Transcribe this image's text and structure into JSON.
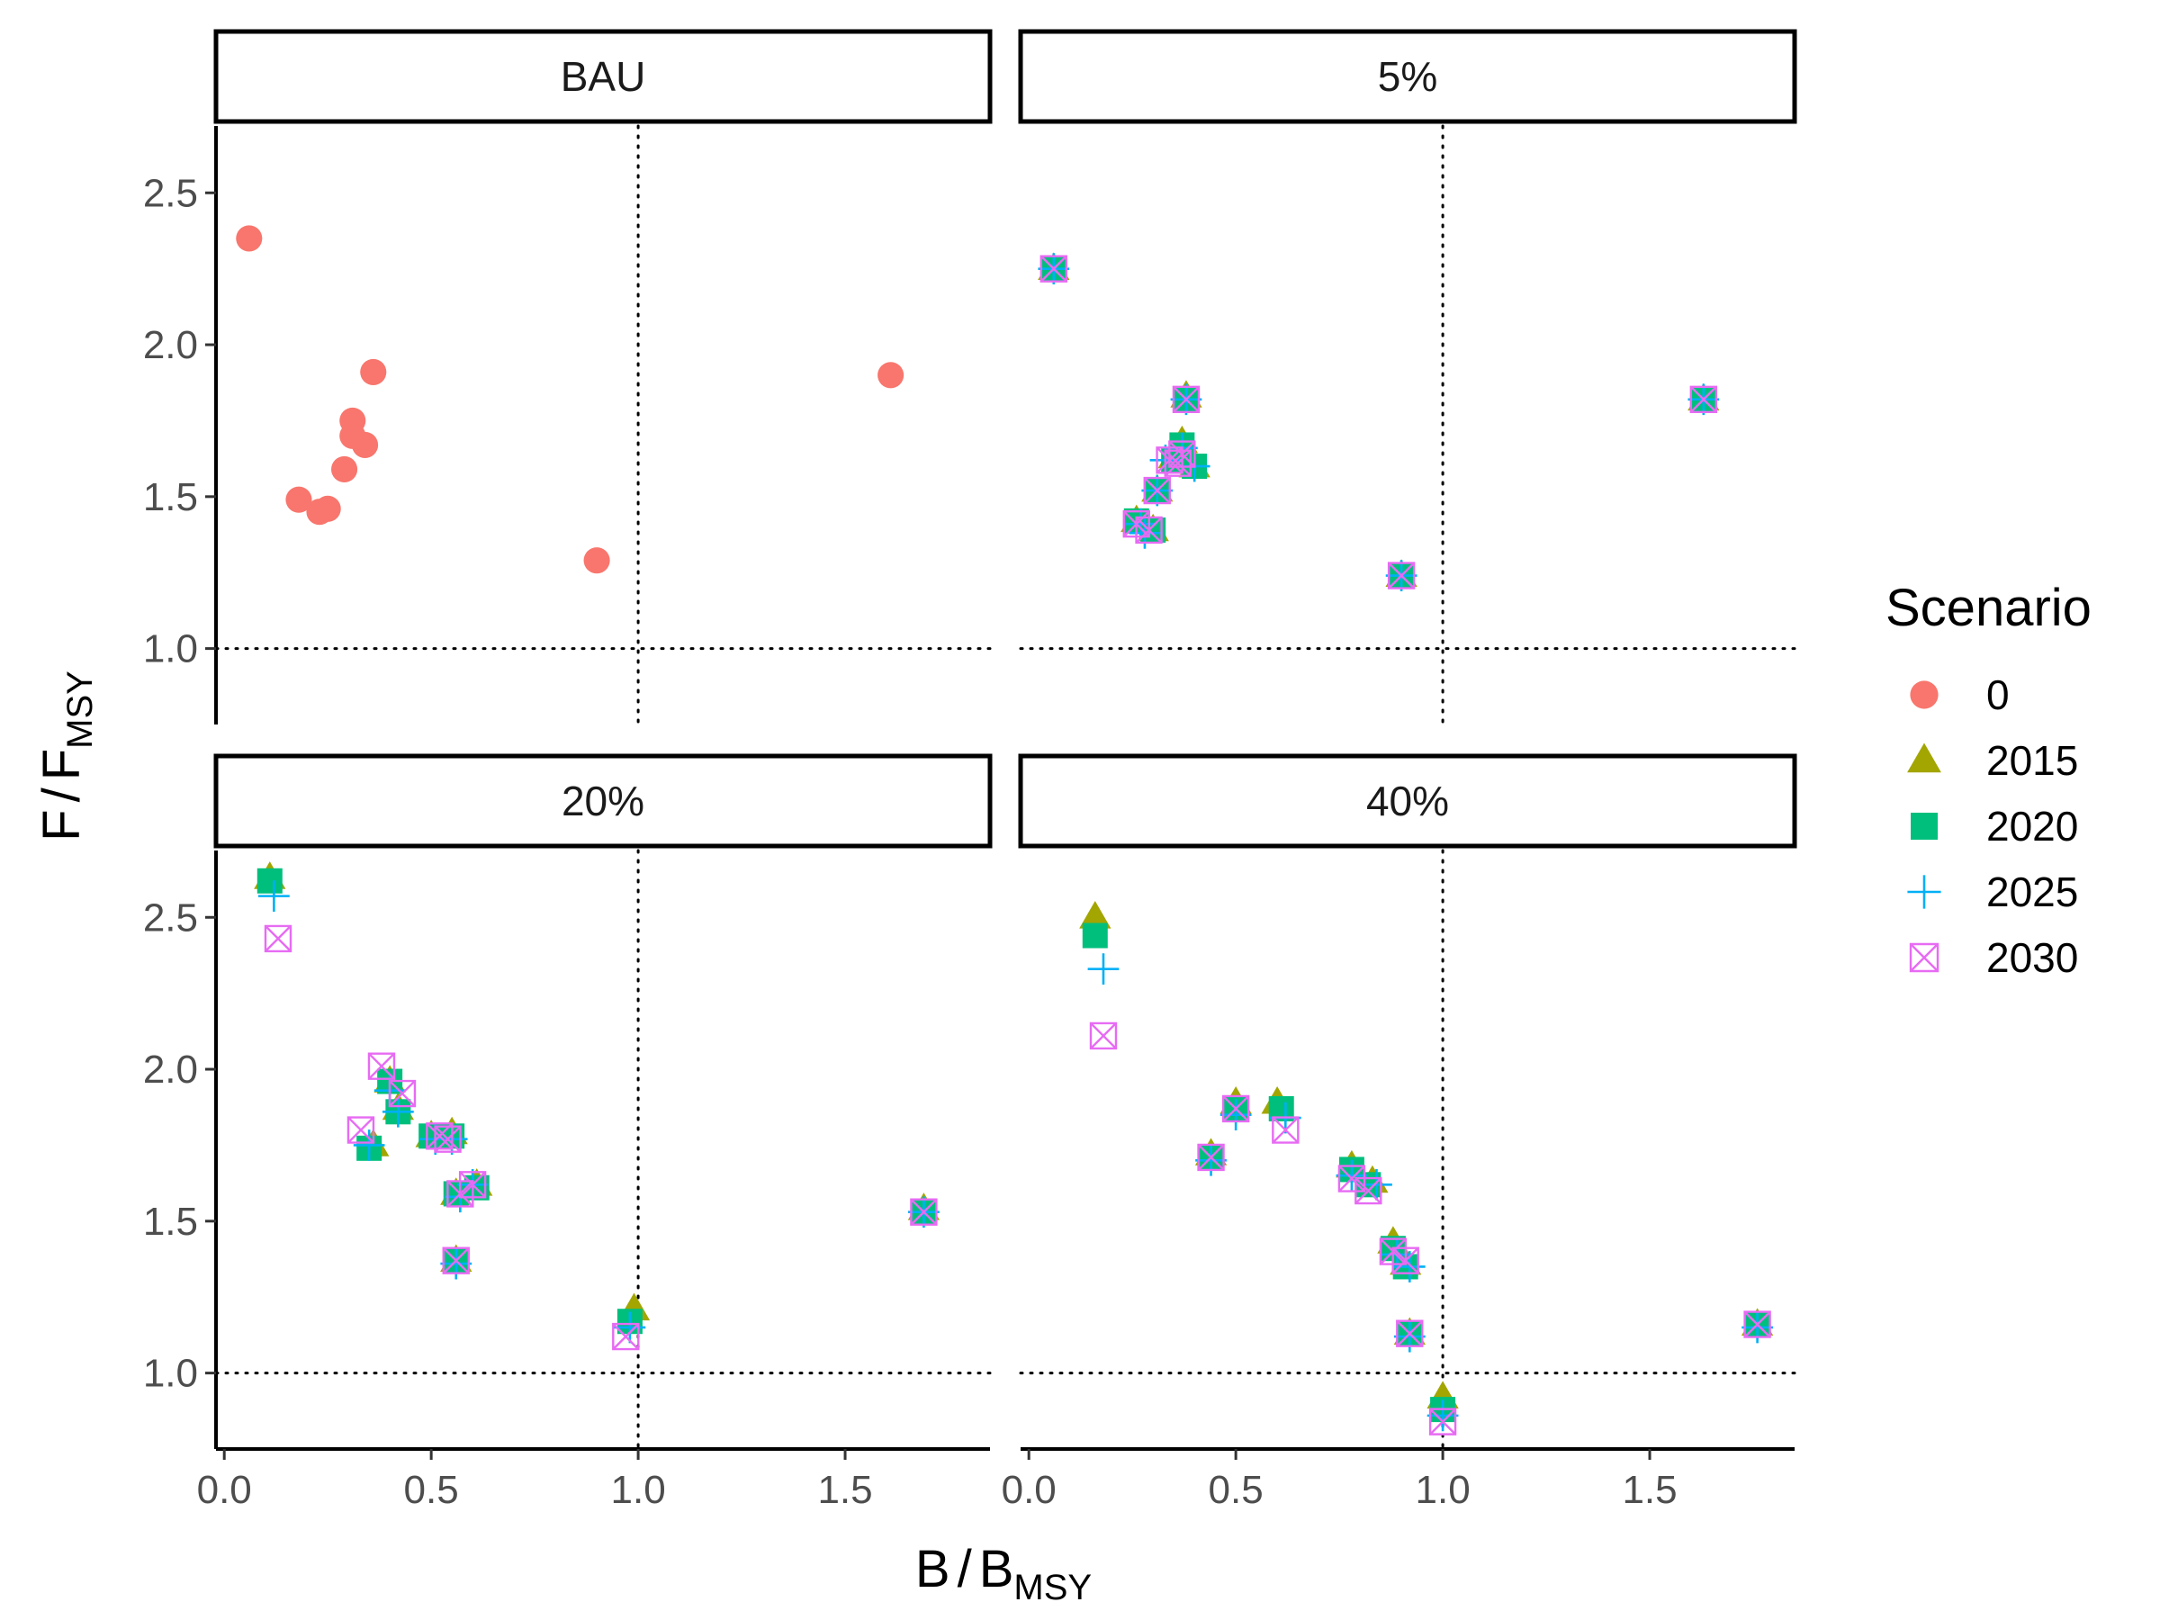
{
  "chart_data": {
    "type": "scatter",
    "xlabel": {
      "main": "B",
      "sub": "MSY"
    },
    "ylabel": {
      "main": "F",
      "sub": "MSY"
    },
    "xlim": [
      -0.02,
      1.85
    ],
    "ylim": [
      0.75,
      2.72
    ],
    "x_ticks": [
      "0.0",
      "0.5",
      "1.0",
      "1.5"
    ],
    "y_ticks": [
      "1.0",
      "1.5",
      "2.0",
      "2.5"
    ],
    "reference_lines": {
      "x": 1.0,
      "y": 1.0,
      "style": "dotted"
    },
    "legend": {
      "title": "Scenario",
      "placement": "right",
      "entries": [
        {
          "label": "0",
          "shape": "circle",
          "color": "#F8766D"
        },
        {
          "label": "2015",
          "shape": "triangle",
          "color": "#A3A500"
        },
        {
          "label": "2020",
          "shape": "square",
          "color": "#00BF7D"
        },
        {
          "label": "2025",
          "shape": "plus",
          "color": "#00B0F6"
        },
        {
          "label": "2030",
          "shape": "boxcross",
          "color": "#E76BF3"
        }
      ]
    },
    "panels": [
      {
        "label": "BAU",
        "series": [
          {
            "name": "0",
            "points": [
              [
                0.06,
                2.35
              ],
              [
                0.36,
                1.91
              ],
              [
                1.61,
                1.9
              ],
              [
                0.31,
                1.75
              ],
              [
                0.31,
                1.7
              ],
              [
                0.34,
                1.67
              ],
              [
                0.29,
                1.59
              ],
              [
                0.18,
                1.49
              ],
              [
                0.23,
                1.45
              ],
              [
                0.25,
                1.46
              ],
              [
                0.9,
                1.29
              ]
            ]
          }
        ]
      },
      {
        "label": "5%",
        "series": [
          {
            "name": "2015",
            "points": [
              [
                0.06,
                2.25
              ],
              [
                0.38,
                1.83
              ],
              [
                1.63,
                1.82
              ],
              [
                0.37,
                1.68
              ],
              [
                0.4,
                1.6
              ],
              [
                0.35,
                1.63
              ],
              [
                0.31,
                1.52
              ],
              [
                0.26,
                1.42
              ],
              [
                0.3,
                1.39
              ],
              [
                0.9,
                1.24
              ]
            ]
          },
          {
            "name": "2020",
            "points": [
              [
                0.06,
                2.25
              ],
              [
                0.38,
                1.82
              ],
              [
                1.63,
                1.82
              ],
              [
                0.37,
                1.67
              ],
              [
                0.4,
                1.6
              ],
              [
                0.35,
                1.62
              ],
              [
                0.31,
                1.52
              ],
              [
                0.26,
                1.42
              ],
              [
                0.3,
                1.39
              ],
              [
                0.9,
                1.24
              ]
            ]
          },
          {
            "name": "2025",
            "points": [
              [
                0.06,
                2.25
              ],
              [
                0.38,
                1.82
              ],
              [
                1.63,
                1.82
              ],
              [
                0.37,
                1.66
              ],
              [
                0.4,
                1.6
              ],
              [
                0.33,
                1.62
              ],
              [
                0.31,
                1.52
              ],
              [
                0.27,
                1.41
              ],
              [
                0.28,
                1.38
              ],
              [
                0.9,
                1.24
              ]
            ]
          },
          {
            "name": "2030",
            "points": [
              [
                0.06,
                2.25
              ],
              [
                0.38,
                1.82
              ],
              [
                1.63,
                1.82
              ],
              [
                0.37,
                1.64
              ],
              [
                0.36,
                1.61
              ],
              [
                0.34,
                1.62
              ],
              [
                0.31,
                1.52
              ],
              [
                0.26,
                1.41
              ],
              [
                0.29,
                1.39
              ],
              [
                0.9,
                1.24
              ]
            ]
          }
        ]
      },
      {
        "label": "20%",
        "series": [
          {
            "name": "2015",
            "points": [
              [
                0.11,
                2.63
              ],
              [
                0.4,
                1.96
              ],
              [
                0.42,
                1.87
              ],
              [
                0.36,
                1.75
              ],
              [
                0.5,
                1.78
              ],
              [
                0.55,
                1.79
              ],
              [
                0.61,
                1.62
              ],
              [
                0.56,
                1.59
              ],
              [
                0.56,
                1.37
              ],
              [
                0.99,
                1.21
              ],
              [
                1.69,
                1.54
              ]
            ]
          },
          {
            "name": "2020",
            "points": [
              [
                0.11,
                2.62
              ],
              [
                0.4,
                1.96
              ],
              [
                0.42,
                1.86
              ],
              [
                0.35,
                1.74
              ],
              [
                0.5,
                1.78
              ],
              [
                0.55,
                1.78
              ],
              [
                0.61,
                1.61
              ],
              [
                0.56,
                1.59
              ],
              [
                0.56,
                1.37
              ],
              [
                0.98,
                1.17
              ],
              [
                1.69,
                1.53
              ]
            ]
          },
          {
            "name": "2025",
            "points": [
              [
                0.12,
                2.57
              ],
              [
                0.4,
                1.93
              ],
              [
                0.42,
                1.86
              ],
              [
                0.35,
                1.75
              ],
              [
                0.51,
                1.77
              ],
              [
                0.55,
                1.77
              ],
              [
                0.6,
                1.62
              ],
              [
                0.57,
                1.58
              ],
              [
                0.56,
                1.36
              ],
              [
                0.98,
                1.15
              ],
              [
                1.69,
                1.53
              ]
            ]
          },
          {
            "name": "2030",
            "points": [
              [
                0.13,
                2.43
              ],
              [
                0.38,
                2.01
              ],
              [
                0.43,
                1.92
              ],
              [
                0.33,
                1.8
              ],
              [
                0.52,
                1.78
              ],
              [
                0.54,
                1.77
              ],
              [
                0.6,
                1.62
              ],
              [
                0.57,
                1.59
              ],
              [
                0.56,
                1.37
              ],
              [
                0.97,
                1.12
              ],
              [
                1.69,
                1.53
              ]
            ]
          }
        ]
      },
      {
        "label": "40%",
        "series": [
          {
            "name": "2015",
            "points": [
              [
                0.16,
                2.5
              ],
              [
                0.5,
                1.89
              ],
              [
                0.6,
                1.89
              ],
              [
                0.44,
                1.72
              ],
              [
                0.78,
                1.68
              ],
              [
                0.83,
                1.63
              ],
              [
                0.88,
                1.43
              ],
              [
                0.91,
                1.36
              ],
              [
                0.92,
                1.13
              ],
              [
                1.0,
                0.92
              ],
              [
                1.76,
                1.16
              ]
            ]
          },
          {
            "name": "2020",
            "points": [
              [
                0.16,
                2.44
              ],
              [
                0.5,
                1.87
              ],
              [
                0.61,
                1.87
              ],
              [
                0.44,
                1.71
              ],
              [
                0.78,
                1.67
              ],
              [
                0.82,
                1.62
              ],
              [
                0.88,
                1.41
              ],
              [
                0.91,
                1.35
              ],
              [
                0.92,
                1.13
              ],
              [
                1.0,
                0.88
              ],
              [
                1.76,
                1.16
              ]
            ]
          },
          {
            "name": "2025",
            "points": [
              [
                0.18,
                2.33
              ],
              [
                0.5,
                1.85
              ],
              [
                0.62,
                1.84
              ],
              [
                0.44,
                1.7
              ],
              [
                0.78,
                1.65
              ],
              [
                0.84,
                1.62
              ],
              [
                0.89,
                1.39
              ],
              [
                0.92,
                1.35
              ],
              [
                0.92,
                1.12
              ],
              [
                1.0,
                0.86
              ],
              [
                1.76,
                1.15
              ]
            ]
          },
          {
            "name": "2030",
            "points": [
              [
                0.18,
                2.11
              ],
              [
                0.5,
                1.87
              ],
              [
                0.62,
                1.8
              ],
              [
                0.44,
                1.71
              ],
              [
                0.78,
                1.64
              ],
              [
                0.82,
                1.6
              ],
              [
                0.88,
                1.4
              ],
              [
                0.91,
                1.37
              ],
              [
                0.92,
                1.13
              ],
              [
                1.0,
                0.84
              ],
              [
                1.76,
                1.16
              ]
            ]
          }
        ]
      }
    ]
  }
}
